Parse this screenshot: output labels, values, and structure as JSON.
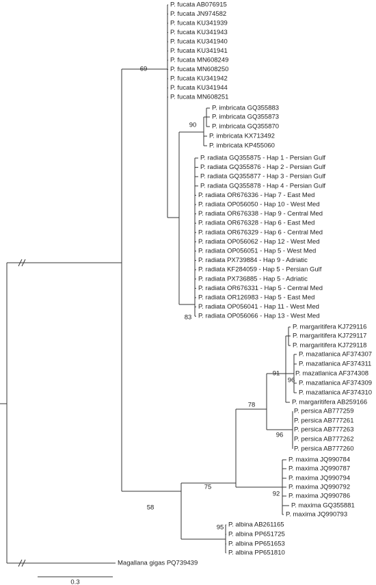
{
  "leaves": [
    "P. fucata AB076915",
    "P. fucata JN974582",
    "P. fucata KU341939",
    "P. fucata KU341943",
    "P. fucata KU341940",
    "P. fucata KU341941",
    "P. fucata MN608249",
    "P. fucata MN608250",
    "P. fucata KU341942",
    "P. fucata KU341944",
    "P. fucata MN608251",
    "P. imbricata GQ355883",
    "P. imbricata GQ355873",
    "P. imbricata GQ355870",
    "P. imbricata KX713492",
    "P. imbricata KP455060",
    "P. radiata GQ355875 - Hap 1 - Persian Gulf",
    "P. radiata GQ355876 - Hap 2 - Persian Gulf",
    "P. radiata GQ355877 - Hap 3 - Persian Gulf",
    "P. radiata GQ355878 - Hap 4 - Persian Gulf",
    "P. radiata OR676336 - Hap 7 - East Med",
    "P. radiata OP056050 - Hap 10 - West Med",
    "P. radiata OR676338 - Hap 9 - Central Med",
    "P. radiata OR676328 - Hap 6 - East Med",
    "P. radiata OR676329 - Hap 6 - Central Med",
    "P. radiata OP056062 - Hap 12 - West Med",
    "P. radiata OP056051 - Hap 5 - West Med",
    "P. radiata PX739884 - Hap 9 - Adriatic",
    "P. radiata KF284059 - Hap 5 - Persian Gulf",
    "P. radiata PX736885 - Hap 5 - Adriatic",
    "P. radiata OR676331 - Hap 5 - Central Med",
    "P. radiata OR126983 - Hap 5 - East Med",
    "P. radiata OP056041 - Hap 11 - West Med",
    "P. radiata OP056066 - Hap 13 - West Med",
    "P. margaritifera KJ729116",
    "P. margaritifera KJ729117",
    "P. margaritifera KJ729118",
    "P. mazatlanica AF374307",
    "P. mazatlanica AF374311",
    "P. mazatlanica AF374308",
    "P. mazatlanica AF374309",
    "P. mazatlanica AF374310",
    "P. margaritifera AB259166",
    "P. persica AB777259",
    "P. persica AB777261",
    "P. persica AB777263",
    "P. persica AB777262",
    "P. persica AB777260",
    "P. maxima JQ990784",
    "P. maxima JQ990787",
    "P. maxima JQ990794",
    "P. maxima JQ990792",
    "P. maxima JQ990786",
    "P. maxima GQ355881",
    "P. maxima JQ990793",
    "P. albina AB261165",
    "P. albina PP651725",
    "P. albina PP651653",
    "P. albina PP651810",
    "Magallana gigas PQ739439"
  ],
  "bootstraps": [
    69,
    90,
    83,
    91,
    96,
    78,
    96,
    75,
    92,
    58,
    95
  ],
  "scale_bar": 0.3
}
